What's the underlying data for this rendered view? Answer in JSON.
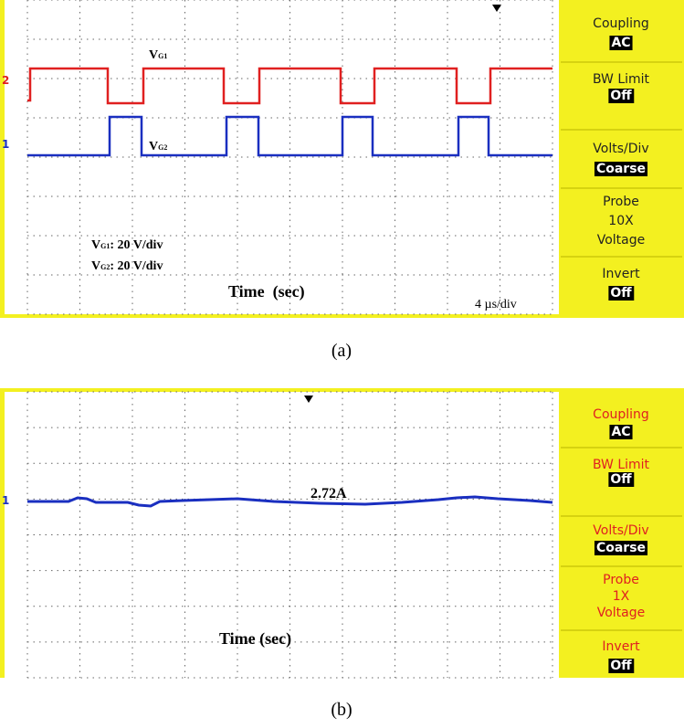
{
  "panels": [
    {
      "channels": {
        "ch2": "2",
        "ch1": "1"
      },
      "trace_labels": [
        {
          "main": "V",
          "sub": "G1"
        },
        {
          "main": "V",
          "sub": "G2"
        }
      ],
      "scale_notes": [
        {
          "main": "V",
          "sub": "G1",
          "text": ": 20 V/div"
        },
        {
          "main": "V",
          "sub": "G2",
          "text": ": 20 V/div"
        }
      ],
      "x_label": "Time  (sec)",
      "timebase": "4 µs/div",
      "menu": [
        {
          "title": "Coupling",
          "value": "AC"
        },
        {
          "title": "BW Limit",
          "value": "Off"
        },
        {
          "title": "Volts/Div",
          "value": "Coarse"
        },
        {
          "title": "Probe",
          "lines": [
            "10X",
            "Voltage"
          ]
        },
        {
          "title": "Invert",
          "value": "Off"
        }
      ],
      "caption": "(a)"
    },
    {
      "channels": {
        "ch1": "1"
      },
      "annotation": "2.72A",
      "x_label": "Time (sec)",
      "menu": [
        {
          "title": "Coupling",
          "value": "AC"
        },
        {
          "title": "BW Limit",
          "value": "Off"
        },
        {
          "title": "Volts/Div",
          "value": "Coarse"
        },
        {
          "title": "Probe",
          "lines": [
            "1X",
            "Voltage"
          ]
        },
        {
          "title": "Invert",
          "value": "Off"
        }
      ],
      "caption": "(b)"
    }
  ]
}
